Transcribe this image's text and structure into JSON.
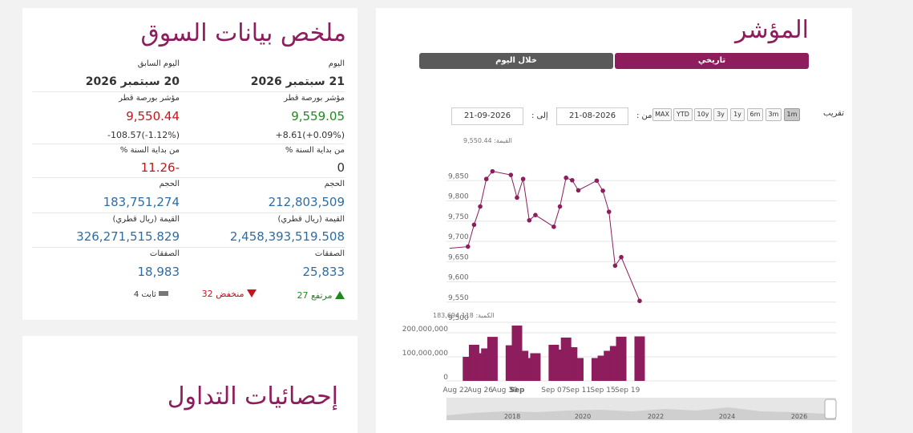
{
  "summary": {
    "title": "ملخص بيانات السوق",
    "today": {
      "heading": "اليوم",
      "date": "21 سبتمبر 2026",
      "index_label": "مؤشر بورصة قطر",
      "index_value": "9,559.05",
      "change": "+8.61(+0.09%)",
      "ytd_label": "من بداية السنة %",
      "ytd_value": "0",
      "volume_label": "الحجم",
      "volume_value": "212,803,509",
      "value_label": "القيمة (ريال قطري)",
      "value_value": "2,458,393,519.508",
      "trades_label": "الصفقات",
      "trades_value": "25,833"
    },
    "previous": {
      "heading": "اليوم السابق",
      "date": "20 سبتمبر 2026",
      "index_label": "مؤشر بورصة قطر",
      "index_value": "9,550.44",
      "change": "-108.57(-1.12%)",
      "ytd_label": "من بداية السنة %",
      "ytd_value": "-11.26",
      "volume_label": "الحجم",
      "volume_value": "183,751,274",
      "value_label": "القيمة (ريال قطري)",
      "value_value": "326,271,515.829",
      "trades_label": "الصفقات",
      "trades_value": "18,983"
    },
    "breadth": {
      "up_label": "مرتفع 27",
      "down_label": "منخفض 32",
      "flat_label": "ثابت 4",
      "up_color": "#1e8a1e",
      "down_color": "#c4161c",
      "flat_color": "#777777"
    }
  },
  "stats": {
    "title": "إحصائيات التداول"
  },
  "index_panel": {
    "title": "المؤشر",
    "tab_historical": "تاريخي",
    "tab_intraday": "خلال اليوم",
    "zoom_label": "تقريب",
    "ranges": [
      "1m",
      "3m",
      "6m",
      "1y",
      "3y",
      "10y",
      "YTD",
      "MAX"
    ],
    "active_range": "1m",
    "from_label": "من :",
    "from_date": "21-08-2026",
    "to_label": "إلى :",
    "to_date": "21-09-2026",
    "price_tooltip": "القيمة: 9,550.44",
    "volume_tooltip": "الكمية: 183,694,118"
  },
  "colors": {
    "accent": "#8d1d5c",
    "tab_inactive": "#5a5a5a"
  },
  "chart_data": [
    {
      "type": "line",
      "x": [
        "2026-08-21",
        "2026-08-24",
        "2026-08-25",
        "2026-08-26",
        "2026-08-27",
        "2026-08-28",
        "2026-08-31",
        "2026-09-01",
        "2026-09-02",
        "2026-09-03",
        "2026-09-04",
        "2026-09-07",
        "2026-09-08",
        "2026-09-09",
        "2026-09-10",
        "2026-09-11",
        "2026-09-14",
        "2026-09-15",
        "2026-09-16",
        "2026-09-17",
        "2026-09-18",
        "2026-09-21"
      ],
      "values": [
        9683,
        9687,
        9741,
        9786,
        9854,
        9873,
        9864,
        9808,
        9854,
        9752,
        9765,
        9736,
        9786,
        9857,
        9851,
        9826,
        9850,
        9825,
        9773,
        9640,
        9661,
        9553
      ],
      "ylim": [
        9500,
        9900
      ],
      "yticks": [
        "9,500",
        "9,550",
        "9,600",
        "9,650",
        "9,700",
        "9,750",
        "9,800",
        "9,850"
      ],
      "grid": true
    },
    {
      "type": "bar",
      "x": [
        "2026-08-24",
        "2026-08-25",
        "2026-08-26",
        "2026-08-27",
        "2026-08-28",
        "2026-08-31",
        "2026-09-01",
        "2026-09-02",
        "2026-09-03",
        "2026-09-04",
        "2026-09-07",
        "2026-09-08",
        "2026-09-09",
        "2026-09-10",
        "2026-09-11",
        "2026-09-14",
        "2026-09-15",
        "2026-09-16",
        "2026-09-17",
        "2026-09-18",
        "2026-09-21"
      ],
      "values": [
        100000000,
        150000000,
        115000000,
        135000000,
        183000000,
        148000000,
        230000000,
        125000000,
        95000000,
        115000000,
        150000000,
        130000000,
        180000000,
        140000000,
        95000000,
        95000000,
        105000000,
        125000000,
        145000000,
        183694118,
        185000000
      ],
      "ylim": [
        0,
        250000000
      ],
      "yticks": [
        "0",
        "100,000,000",
        "200,000,000"
      ],
      "xticks": [
        "Aug 22",
        "Aug 26",
        "Aug 30",
        "Sep",
        "Sep 07",
        "Sep 11",
        "Sep 15",
        "Sep 19"
      ]
    }
  ],
  "navigator": {
    "years": [
      "2018",
      "2020",
      "2022",
      "2024",
      "2026"
    ]
  }
}
